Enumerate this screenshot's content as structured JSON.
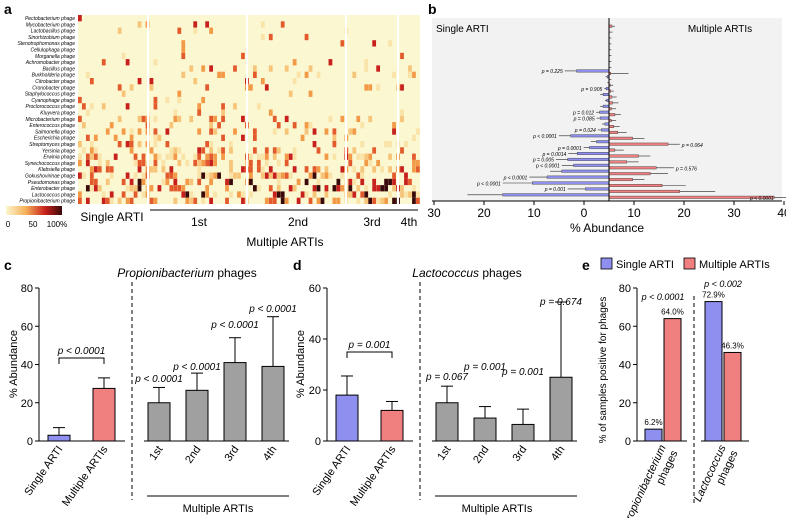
{
  "panels": {
    "a": "a",
    "b": "b",
    "c": "c",
    "d": "d",
    "e": "e"
  },
  "colors": {
    "single": "#8f8ff0",
    "multiple": "#f07f7f",
    "gray": "#a0a0a0",
    "heat_low": "#fbf7d0",
    "heat_mid": "#f6b15a",
    "heat_high": "#c8201c",
    "heat_max": "#3a0a0a"
  },
  "chart_data": [
    {
      "id": "a",
      "type": "heatmap",
      "rows": [
        "Pectobacterium phage",
        "Mycobacterium phage",
        "Lactobacillus phage",
        "Sinorhizobium phage",
        "Stenotrophomonas phage",
        "Cellulophaga phage",
        "Morganella phage",
        "Achromobacter phage",
        "Bacillus phage",
        "Burkholderia phage",
        "Citrobacter phage",
        "Cronobacter phage",
        "Staphylococcus phage",
        "Cyanophage phage",
        "Proclorococcus phage",
        "Kluyvera phage",
        "Microbacterium phage",
        "Enterococcus phage",
        "Salmonella phage",
        "Escherichia phage",
        "Streptomyces phage",
        "Yersinia phage",
        "Erwinia phage",
        "Synechococcus phage",
        "Klebsiella phage",
        "Gokushovirinae phage",
        "Pseudomonas phage",
        "Enterobacter phage",
        "Lactococcus phage",
        "Propionibacterium phage"
      ],
      "legend_ticks": [
        "0",
        "50",
        "100%"
      ],
      "group_labels": [
        "Single ARTI",
        "1st",
        "2nd",
        "3rd",
        "4th"
      ],
      "group_axis_label": "Multiple ARTIs"
    },
    {
      "id": "b",
      "type": "bar",
      "orientation": "horizontal",
      "left_title": "Single ARTI",
      "right_title": "Multiple ARTIs",
      "xlabel": "% Abundance",
      "xticks": [
        "30",
        "20",
        "10",
        "0",
        "10",
        "20",
        "30",
        "40"
      ],
      "xlim": [
        -30,
        40
      ],
      "series": [
        {
          "name": "Single ARTI",
          "values": [
            0,
            0,
            0,
            0,
            0,
            0,
            0,
            0,
            5.5,
            0.3,
            0,
            0.5,
            1,
            0.4,
            1,
            1.6,
            1.5,
            0.7,
            1.3,
            6.5,
            2.1,
            3.3,
            5.4,
            7,
            6,
            8,
            10.5,
            13,
            4,
            18
          ]
        },
        {
          "name": "Multiple ARTIs",
          "values": [
            0.5,
            0,
            0,
            0,
            0,
            0,
            0,
            0,
            0.3,
            0,
            0.2,
            0.3,
            0.5,
            0.6,
            0.4,
            1,
            0.4,
            0.8,
            1.5,
            4,
            10,
            1,
            5,
            3,
            8,
            7,
            4,
            9,
            12,
            28
          ]
        }
      ],
      "errors": [
        {
          "name": "Single ARTI",
          "values": [
            0,
            0,
            0,
            0,
            0,
            0,
            0,
            0,
            2,
            0.3,
            0.3,
            0.3,
            0.5,
            0.3,
            0.5,
            0.6,
            0.6,
            0.5,
            0.6,
            2,
            1,
            1,
            1.5,
            2,
            2,
            2,
            3,
            5,
            3,
            6
          ]
        },
        {
          "name": "Multiple ARTIs",
          "values": [
            0.5,
            0.6,
            0.4,
            0.4,
            0.4,
            0.4,
            0.4,
            0.4,
            3,
            0.4,
            0.5,
            0.5,
            0.8,
            1,
            0.8,
            1,
            0.8,
            1,
            1.5,
            2,
            2,
            1.5,
            2,
            2,
            3,
            3,
            2,
            4,
            6,
            6
          ]
        }
      ],
      "annotations": [
        {
          "row": 8,
          "text": "p = 0.225",
          "side": "left"
        },
        {
          "row": 11,
          "text": "p = 0.905",
          "side": "left"
        },
        {
          "row": 15,
          "text": "p = 0.012",
          "side": "left"
        },
        {
          "row": 16,
          "text": "p = 0.085",
          "side": "left"
        },
        {
          "row": 18,
          "text": "p = 0.024",
          "side": "left"
        },
        {
          "row": 19,
          "text": "p < 0.0001",
          "side": "left"
        },
        {
          "row": 20,
          "text": "p = 0.064",
          "side": "right"
        },
        {
          "row": 21,
          "text": "p = 0.0001",
          "side": "left"
        },
        {
          "row": 22,
          "text": "p = 0.0014",
          "side": "left"
        },
        {
          "row": 23,
          "text": "p = 0.005",
          "side": "left"
        },
        {
          "row": 24,
          "text": "p < 0.0001",
          "side": "left"
        },
        {
          "row": 24,
          "text": "p = 0.576",
          "side": "right"
        },
        {
          "row": 26,
          "text": "p < 0.0001",
          "side": "left"
        },
        {
          "row": 27,
          "text": "p < 0.0001",
          "side": "left"
        },
        {
          "row": 28,
          "text": "p = 0.001",
          "side": "left"
        },
        {
          "row": 29,
          "text": "p < 0.0001",
          "side": "right"
        }
      ]
    },
    {
      "id": "c",
      "type": "bar",
      "title_italic": "Propionibacterium",
      "title_rest": " phages",
      "ylabel": "% Abundance",
      "ylim": [
        0,
        80
      ],
      "yticks": [
        "0",
        "20",
        "40",
        "60",
        "80"
      ],
      "categories": [
        "Single ARTI",
        "Multiple ARTIs",
        "1st",
        "2nd",
        "3rd",
        "4th"
      ],
      "values": [
        3,
        27.5,
        20,
        26.5,
        41,
        39
      ],
      "errors": [
        4,
        5.5,
        8,
        9,
        13,
        26
      ],
      "pvalues": [
        "p < 0.0001",
        "p < 0.0001",
        "p < 0.0001",
        "p < 0.0001",
        "p < 0.0001"
      ],
      "group_label": "Multiple ARTIs"
    },
    {
      "id": "d",
      "type": "bar",
      "title_italic": "Lactococcus",
      "title_rest": " phages",
      "ylabel": "% Abundance",
      "ylim": [
        0,
        60
      ],
      "yticks": [
        "0",
        "20",
        "40",
        "60"
      ],
      "categories": [
        "Single ARTI",
        "Multiple ARTIs",
        "1st",
        "2nd",
        "3rd",
        "4th"
      ],
      "values": [
        18,
        12,
        15,
        9,
        6.5,
        25
      ],
      "errors": [
        7.5,
        3.5,
        6.5,
        4.5,
        6,
        29.5
      ],
      "pvalues": [
        "p = 0.001",
        "p = 0.067",
        "p = 0.001",
        "p = 0.001",
        "p = 0.674"
      ],
      "group_label": "Multiple ARTIs"
    },
    {
      "id": "e",
      "type": "bar",
      "ylabel": "% of samples positive for phages",
      "ylim": [
        0,
        80
      ],
      "yticks": [
        "0",
        "20",
        "40",
        "60",
        "80"
      ],
      "legend": [
        "Single ARTI",
        "Multiple ARTIs"
      ],
      "categories": [
        {
          "italic": "Propionibacterium",
          "rest": "phages"
        },
        {
          "italic": "Lactococcus",
          "rest": "phages"
        }
      ],
      "series": [
        {
          "name": "Single ARTI",
          "values": [
            6.2,
            72.9
          ]
        },
        {
          "name": "Multiple ARTIs",
          "values": [
            64.0,
            46.3
          ]
        }
      ],
      "value_labels": [
        "6.2%",
        "64.0%",
        "72.9%",
        "46.3%"
      ],
      "pvalues": [
        "p < 0.0001",
        "p < 0.002"
      ]
    }
  ]
}
